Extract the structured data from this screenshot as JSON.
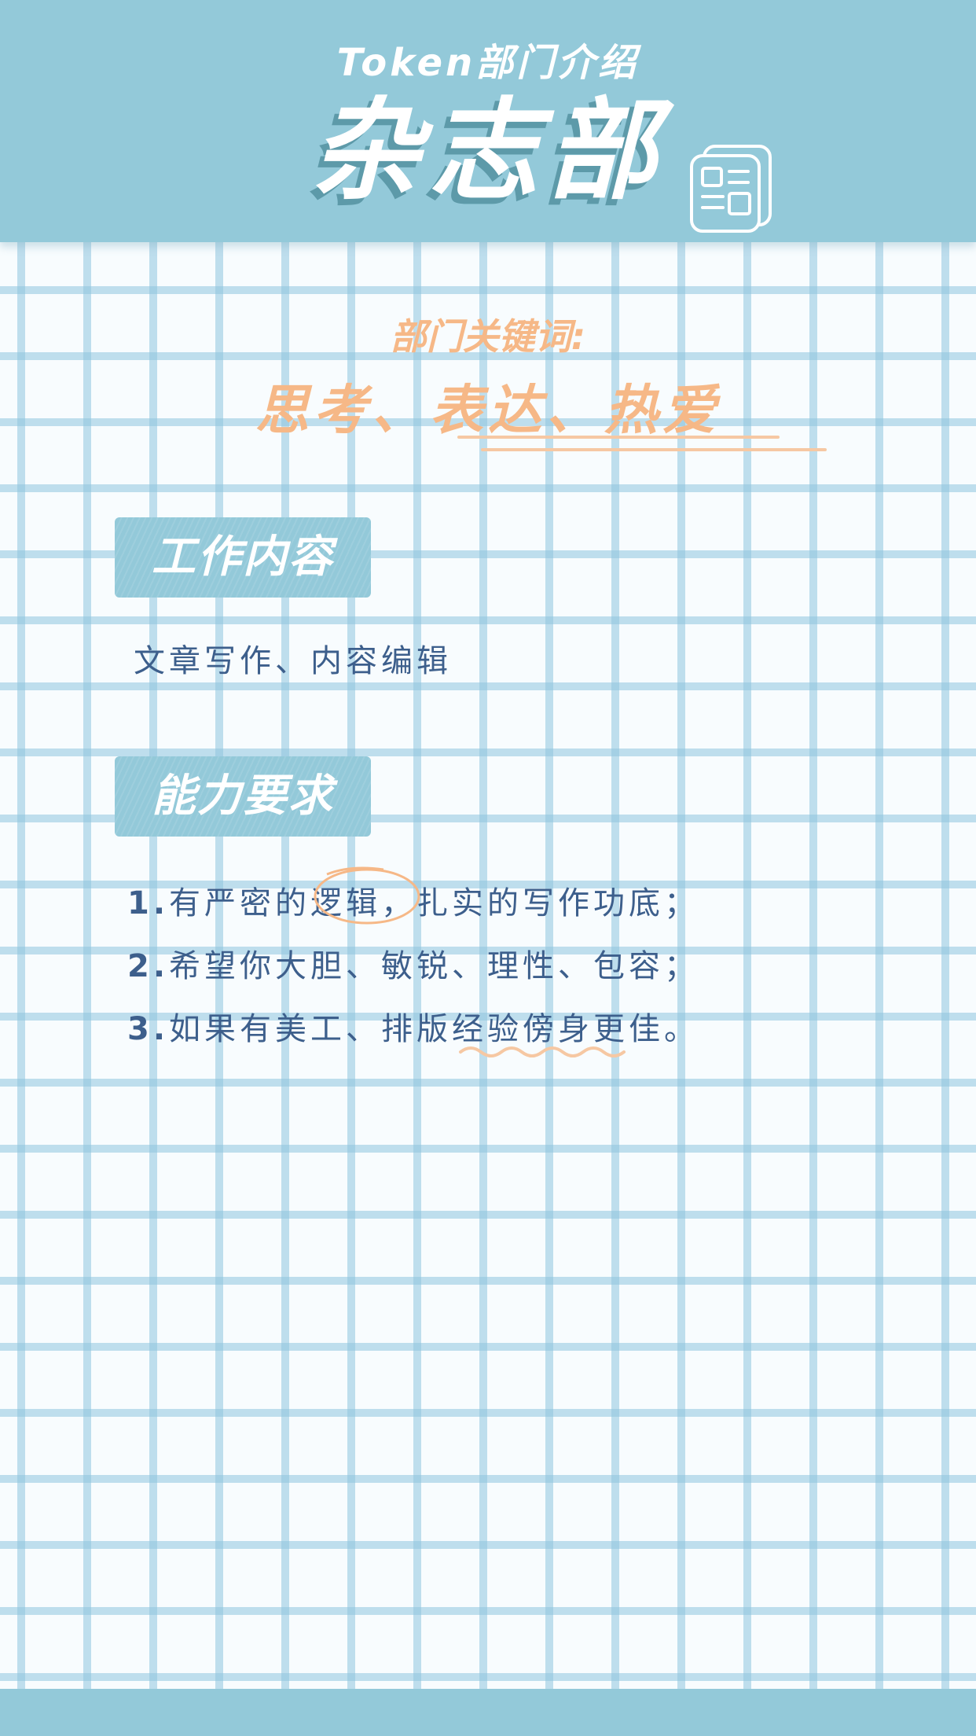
{
  "header": {
    "subtitle": "Token部门介绍",
    "title": "杂志部",
    "icon": "newspaper-icon"
  },
  "keywords": {
    "label": "部门关键词:",
    "value": "思考、表达、热爱"
  },
  "work": {
    "heading": "工作内容",
    "content": "文章写作、内容编辑"
  },
  "requirements": {
    "heading": "能力要求",
    "items": [
      {
        "num": "1.",
        "text": "有严密的逻辑，扎实的写作功底；"
      },
      {
        "num": "2.",
        "text": "希望你大胆、敏锐、理性、包容；"
      },
      {
        "num": "3.",
        "text": "如果有美工、排版经验傍身更佳。"
      }
    ]
  },
  "colors": {
    "primary": "#93c9d9",
    "accent": "#f6b887",
    "text": "#3d5f8c",
    "shadow": "#5d9aa9"
  }
}
